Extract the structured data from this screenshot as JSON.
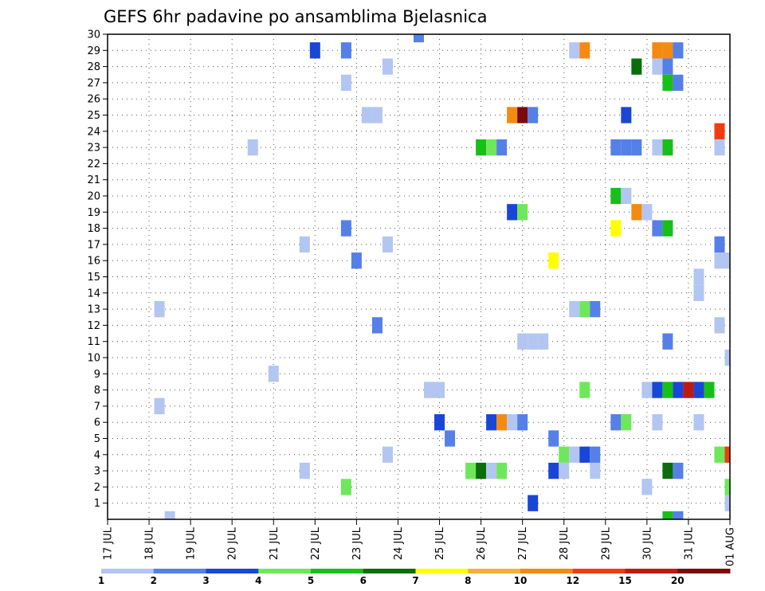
{
  "chart_data": {
    "type": "heatmap",
    "title": "GEFS 6hr padavine po ansamblima Bjelasnica",
    "xlabel": "",
    "ylabel": "",
    "x_tick_labels": [
      "17 JUL",
      "18 JUL",
      "19 JUL",
      "20 JUL",
      "21 JUL",
      "22 JUL",
      "23 JUL",
      "24 JUL",
      "25 JUL",
      "26 JUL",
      "27 JUL",
      "28 JUL",
      "29 JUL",
      "30 JUL",
      "31 JUL",
      "01 AUG"
    ],
    "x_range_days": [
      0,
      15
    ],
    "y_tick_labels": [
      "1",
      "2",
      "3",
      "4",
      "5",
      "6",
      "7",
      "8",
      "9",
      "10",
      "11",
      "12",
      "13",
      "14",
      "15",
      "16",
      "17",
      "18",
      "19",
      "20",
      "21",
      "22",
      "23",
      "24",
      "25",
      "26",
      "27",
      "28",
      "29",
      "30"
    ],
    "y_range": [
      0,
      30
    ],
    "grid": true,
    "colorbar": {
      "labels": [
        "1",
        "2",
        "3",
        "4",
        "5",
        "6",
        "7",
        "8",
        "10",
        "12",
        "15",
        "20"
      ],
      "colors": [
        "#b3c6f2",
        "#5580e8",
        "#1a46d6",
        "#6ee85a",
        "#18bf18",
        "#0b6e0b",
        "#ffff00",
        "#f4b03a",
        "#f58a10",
        "#f03c10",
        "#c01a10",
        "#7a0a0a"
      ]
    },
    "cells": [
      {
        "day": 7.5,
        "member": 30,
        "v": 2
      },
      {
        "day": 5.0,
        "member": 29,
        "v": 3
      },
      {
        "day": 5.75,
        "member": 29,
        "v": 2
      },
      {
        "day": 11.25,
        "member": 29,
        "v": 1
      },
      {
        "day": 11.5,
        "member": 29,
        "v": 10
      },
      {
        "day": 13.25,
        "member": 29,
        "v": 10
      },
      {
        "day": 13.5,
        "member": 29,
        "v": 10
      },
      {
        "day": 13.75,
        "member": 29,
        "v": 2
      },
      {
        "day": 6.75,
        "member": 28,
        "v": 1
      },
      {
        "day": 12.75,
        "member": 28,
        "v": 6
      },
      {
        "day": 13.25,
        "member": 28,
        "v": 1
      },
      {
        "day": 13.5,
        "member": 28,
        "v": 2
      },
      {
        "day": 5.75,
        "member": 27,
        "v": 1
      },
      {
        "day": 13.5,
        "member": 27,
        "v": 5
      },
      {
        "day": 13.75,
        "member": 27,
        "v": 2
      },
      {
        "day": 6.25,
        "member": 25,
        "v": 1
      },
      {
        "day": 6.5,
        "member": 25,
        "v": 1
      },
      {
        "day": 9.75,
        "member": 25,
        "v": 10
      },
      {
        "day": 10.0,
        "member": 25,
        "v": 20
      },
      {
        "day": 10.25,
        "member": 25,
        "v": 2
      },
      {
        "day": 12.5,
        "member": 25,
        "v": 3
      },
      {
        "day": 14.75,
        "member": 24,
        "v": 12
      },
      {
        "day": 3.5,
        "member": 23,
        "v": 1
      },
      {
        "day": 9.0,
        "member": 23,
        "v": 5
      },
      {
        "day": 9.25,
        "member": 23,
        "v": 4
      },
      {
        "day": 9.5,
        "member": 23,
        "v": 2
      },
      {
        "day": 12.25,
        "member": 23,
        "v": 2
      },
      {
        "day": 12.5,
        "member": 23,
        "v": 2
      },
      {
        "day": 12.75,
        "member": 23,
        "v": 2
      },
      {
        "day": 13.25,
        "member": 23,
        "v": 1
      },
      {
        "day": 13.5,
        "member": 23,
        "v": 5
      },
      {
        "day": 14.75,
        "member": 23,
        "v": 1
      },
      {
        "day": 12.25,
        "member": 20,
        "v": 5
      },
      {
        "day": 12.5,
        "member": 20,
        "v": 1
      },
      {
        "day": 9.75,
        "member": 19,
        "v": 3
      },
      {
        "day": 10.0,
        "member": 19,
        "v": 4
      },
      {
        "day": 12.75,
        "member": 19,
        "v": 10
      },
      {
        "day": 13.0,
        "member": 19,
        "v": 1
      },
      {
        "day": 5.75,
        "member": 18,
        "v": 2
      },
      {
        "day": 12.25,
        "member": 18,
        "v": 7
      },
      {
        "day": 13.25,
        "member": 18,
        "v": 2
      },
      {
        "day": 13.5,
        "member": 18,
        "v": 5
      },
      {
        "day": 4.75,
        "member": 17,
        "v": 1
      },
      {
        "day": 6.75,
        "member": 17,
        "v": 1
      },
      {
        "day": 14.75,
        "member": 17,
        "v": 2
      },
      {
        "day": 6.0,
        "member": 16,
        "v": 2
      },
      {
        "day": 10.75,
        "member": 16,
        "v": 7
      },
      {
        "day": 14.75,
        "member": 16,
        "v": 1
      },
      {
        "day": 15.0,
        "member": 16,
        "v": 1
      },
      {
        "day": 14.25,
        "member": 15,
        "v": 1
      },
      {
        "day": 14.25,
        "member": 14,
        "v": 1
      },
      {
        "day": 1.25,
        "member": 13,
        "v": 1
      },
      {
        "day": 11.25,
        "member": 13,
        "v": 1
      },
      {
        "day": 11.5,
        "member": 13,
        "v": 4
      },
      {
        "day": 11.75,
        "member": 13,
        "v": 2
      },
      {
        "day": 6.5,
        "member": 12,
        "v": 2
      },
      {
        "day": 14.75,
        "member": 12,
        "v": 1
      },
      {
        "day": 10.0,
        "member": 11,
        "v": 1
      },
      {
        "day": 10.25,
        "member": 11,
        "v": 1
      },
      {
        "day": 10.5,
        "member": 11,
        "v": 1
      },
      {
        "day": 13.5,
        "member": 11,
        "v": 2
      },
      {
        "day": 15.0,
        "member": 10,
        "v": 1
      },
      {
        "day": 4.0,
        "member": 9,
        "v": 1
      },
      {
        "day": 7.75,
        "member": 8,
        "v": 1
      },
      {
        "day": 8.0,
        "member": 8,
        "v": 1
      },
      {
        "day": 11.5,
        "member": 8,
        "v": 4
      },
      {
        "day": 13.0,
        "member": 8,
        "v": 1
      },
      {
        "day": 13.25,
        "member": 8,
        "v": 3
      },
      {
        "day": 13.5,
        "member": 8,
        "v": 5
      },
      {
        "day": 13.75,
        "member": 8,
        "v": 3
      },
      {
        "day": 14.0,
        "member": 8,
        "v": 15
      },
      {
        "day": 14.25,
        "member": 8,
        "v": 3
      },
      {
        "day": 14.5,
        "member": 8,
        "v": 5
      },
      {
        "day": 1.25,
        "member": 7,
        "v": 1
      },
      {
        "day": 8.0,
        "member": 6,
        "v": 3
      },
      {
        "day": 9.25,
        "member": 6,
        "v": 3
      },
      {
        "day": 9.5,
        "member": 6,
        "v": 10
      },
      {
        "day": 9.75,
        "member": 6,
        "v": 1
      },
      {
        "day": 10.0,
        "member": 6,
        "v": 2
      },
      {
        "day": 12.25,
        "member": 6,
        "v": 2
      },
      {
        "day": 12.5,
        "member": 6,
        "v": 4
      },
      {
        "day": 13.25,
        "member": 6,
        "v": 1
      },
      {
        "day": 14.25,
        "member": 6,
        "v": 1
      },
      {
        "day": 8.25,
        "member": 5,
        "v": 2
      },
      {
        "day": 10.75,
        "member": 5,
        "v": 2
      },
      {
        "day": 6.75,
        "member": 4,
        "v": 1
      },
      {
        "day": 11.0,
        "member": 4,
        "v": 4
      },
      {
        "day": 11.25,
        "member": 4,
        "v": 1
      },
      {
        "day": 11.5,
        "member": 4,
        "v": 3
      },
      {
        "day": 11.75,
        "member": 4,
        "v": 2
      },
      {
        "day": 14.75,
        "member": 4,
        "v": 4
      },
      {
        "day": 15.0,
        "member": 4,
        "v": 12
      },
      {
        "day": 4.75,
        "member": 3,
        "v": 1
      },
      {
        "day": 8.75,
        "member": 3,
        "v": 4
      },
      {
        "day": 9.0,
        "member": 3,
        "v": 6
      },
      {
        "day": 9.25,
        "member": 3,
        "v": 1
      },
      {
        "day": 9.5,
        "member": 3,
        "v": 4
      },
      {
        "day": 10.75,
        "member": 3,
        "v": 3
      },
      {
        "day": 11.0,
        "member": 3,
        "v": 1
      },
      {
        "day": 11.75,
        "member": 3,
        "v": 1
      },
      {
        "day": 13.5,
        "member": 3,
        "v": 6
      },
      {
        "day": 13.75,
        "member": 3,
        "v": 2
      },
      {
        "day": 5.75,
        "member": 2,
        "v": 4
      },
      {
        "day": 13.0,
        "member": 2,
        "v": 1
      },
      {
        "day": 15.0,
        "member": 2,
        "v": 4
      },
      {
        "day": 10.25,
        "member": 1,
        "v": 3
      },
      {
        "day": 15.0,
        "member": 1,
        "v": 1
      },
      {
        "day": 1.5,
        "member": 0,
        "v": 1
      },
      {
        "day": 13.5,
        "member": 0,
        "v": 5
      },
      {
        "day": 13.75,
        "member": 0,
        "v": 2
      }
    ]
  }
}
